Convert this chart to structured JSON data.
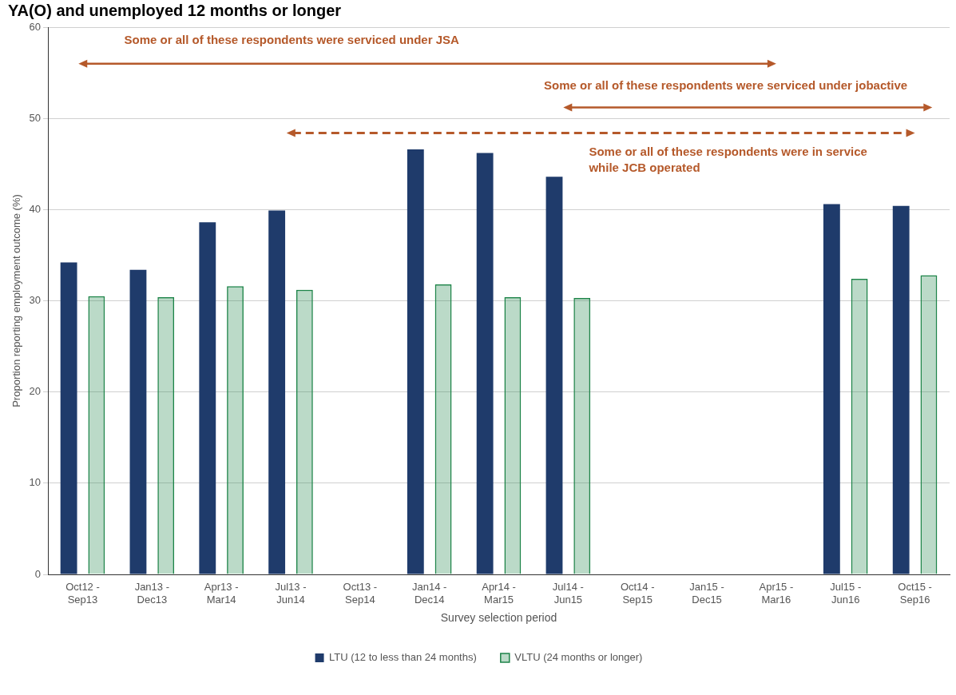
{
  "chart_data": {
    "type": "bar",
    "title": "YA(O) and unemployed 12 months or longer",
    "xlabel": "Survey selection period",
    "ylabel": "Proportion reporting employment outcome (%)",
    "categories": [
      [
        "Oct12 -",
        "Sep13"
      ],
      [
        "Jan13 -",
        "Dec13"
      ],
      [
        "Apr13 -",
        "Mar14"
      ],
      [
        "Jul13 -",
        "Jun14"
      ],
      [
        "Oct13 -",
        "Sep14"
      ],
      [
        "Jan14 -",
        "Dec14"
      ],
      [
        "Apr14 -",
        "Mar15"
      ],
      [
        "Jul14 -",
        "Jun15"
      ],
      [
        "Oct14 -",
        "Sep15"
      ],
      [
        "Jan15 -",
        "Dec15"
      ],
      [
        "Apr15 -",
        "Mar16"
      ],
      [
        "Jul15 -",
        "Jun16"
      ],
      [
        "Oct15 -",
        "Sep16"
      ]
    ],
    "series": [
      {
        "name": "LTU (12 to less than 24 months)",
        "color": "#1f3b6b",
        "values": [
          34.2,
          33.4,
          38.6,
          39.9,
          null,
          46.6,
          46.2,
          43.6,
          null,
          null,
          null,
          40.6,
          40.4
        ]
      },
      {
        "name": "VLTU (24 months or longer)",
        "color": "#1e8449",
        "values": [
          30.5,
          30.4,
          31.6,
          31.2,
          null,
          31.8,
          30.4,
          30.3,
          null,
          null,
          null,
          32.4,
          32.8
        ]
      }
    ],
    "ylim": [
      0,
      60
    ],
    "yticks": [
      0,
      10,
      20,
      30,
      40,
      50,
      60
    ],
    "grid": "y",
    "legend": "bottom",
    "annotations": [
      "Some or all of these respondents were serviced under JSA",
      "Some or all of these respondents were serviced under jobactive",
      "Some or all of these respondents were in service while JCB operated"
    ]
  }
}
